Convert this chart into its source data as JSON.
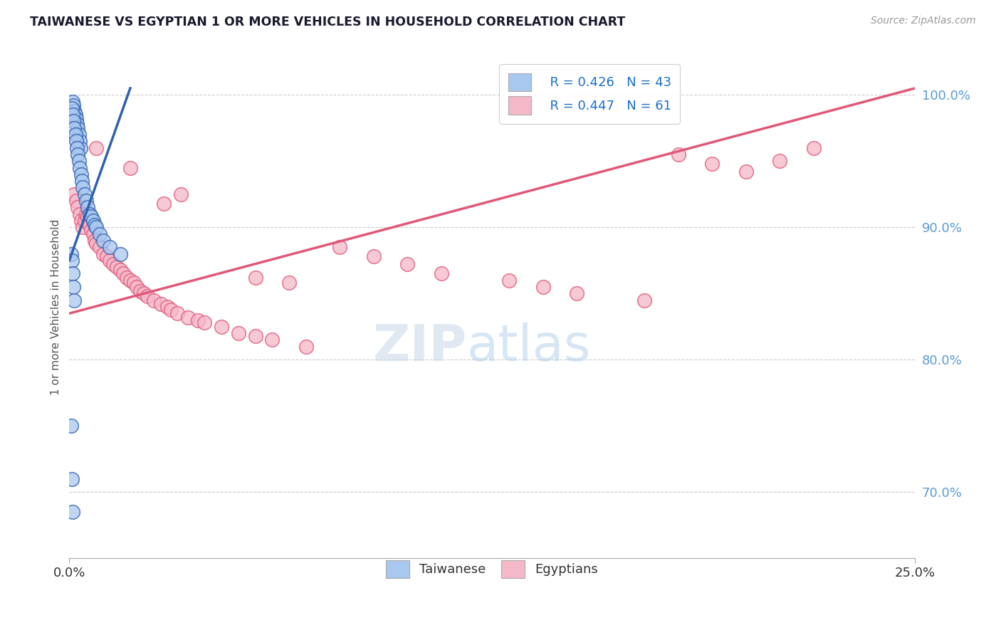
{
  "title": "TAIWANESE VS EGYPTIAN 1 OR MORE VEHICLES IN HOUSEHOLD CORRELATION CHART",
  "source": "Source: ZipAtlas.com",
  "ylabel_axis": "1 or more Vehicles in Household",
  "legend_label1": "Taiwanese",
  "legend_label2": "Egyptians",
  "legend_r1": "R = 0.426",
  "legend_n1": "N = 43",
  "legend_r2": "R = 0.447",
  "legend_n2": "N = 61",
  "watermark_zip": "ZIP",
  "watermark_atlas": "atlas",
  "color_taiwanese": "#a8c8f0",
  "color_egyptian": "#f5b8c8",
  "color_trend_taiwanese": "#3060b0",
  "color_trend_egyptian": "#e05878",
  "background": "#ffffff",
  "xlim": [
    0,
    25
  ],
  "ylim": [
    65,
    103
  ],
  "yticks": [
    70,
    80,
    90,
    100
  ],
  "ytick_labels": [
    "70.0%",
    "80.0%",
    "90.0%",
    "100.0%"
  ],
  "xtick_labels": [
    "0.0%",
    "25.0%"
  ],
  "taiwanese_x": [
    0.1,
    0.12,
    0.15,
    0.18,
    0.2,
    0.22,
    0.25,
    0.28,
    0.3,
    0.32,
    0.08,
    0.1,
    0.12,
    0.15,
    0.18,
    0.2,
    0.22,
    0.25,
    0.28,
    0.3,
    0.35,
    0.38,
    0.4,
    0.45,
    0.5,
    0.55,
    0.6,
    0.65,
    0.7,
    0.75,
    0.8,
    0.9,
    1.0,
    1.2,
    1.5,
    0.05,
    0.08,
    0.1,
    0.12,
    0.15,
    0.05,
    0.07,
    0.09
  ],
  "taiwanese_y": [
    99.5,
    99.2,
    98.8,
    98.5,
    98.2,
    97.8,
    97.5,
    97.0,
    96.5,
    96.0,
    99.0,
    98.5,
    98.0,
    97.5,
    97.0,
    96.5,
    96.0,
    95.5,
    95.0,
    94.5,
    94.0,
    93.5,
    93.0,
    92.5,
    92.0,
    91.5,
    91.0,
    90.8,
    90.5,
    90.2,
    90.0,
    89.5,
    89.0,
    88.5,
    88.0,
    88.0,
    87.5,
    86.5,
    85.5,
    84.5,
    75.0,
    71.0,
    68.5
  ],
  "egyptian_x": [
    0.15,
    0.2,
    0.25,
    0.3,
    0.35,
    0.4,
    0.45,
    0.5,
    0.55,
    0.6,
    0.65,
    0.7,
    0.75,
    0.8,
    0.9,
    1.0,
    1.1,
    1.2,
    1.3,
    1.4,
    1.5,
    1.6,
    1.7,
    1.8,
    1.9,
    2.0,
    2.1,
    2.2,
    2.3,
    2.5,
    2.7,
    2.9,
    3.0,
    3.2,
    3.5,
    3.8,
    4.0,
    4.5,
    5.0,
    5.5,
    6.0,
    7.0,
    8.0,
    9.0,
    10.0,
    11.0,
    13.0,
    14.0,
    15.0,
    17.0,
    18.0,
    19.0,
    20.0,
    21.0,
    22.0,
    5.5,
    6.5,
    3.3,
    2.8,
    1.8,
    0.8
  ],
  "egyptian_y": [
    92.5,
    92.0,
    91.5,
    91.0,
    90.5,
    90.0,
    90.5,
    91.0,
    90.8,
    90.2,
    89.8,
    89.5,
    89.0,
    88.8,
    88.5,
    88.0,
    87.8,
    87.5,
    87.2,
    87.0,
    86.8,
    86.5,
    86.2,
    86.0,
    85.8,
    85.5,
    85.2,
    85.0,
    84.8,
    84.5,
    84.2,
    84.0,
    83.8,
    83.5,
    83.2,
    83.0,
    82.8,
    82.5,
    82.0,
    81.8,
    81.5,
    81.0,
    88.5,
    87.8,
    87.2,
    86.5,
    86.0,
    85.5,
    85.0,
    84.5,
    95.5,
    94.8,
    94.2,
    95.0,
    96.0,
    86.2,
    85.8,
    92.5,
    91.8,
    94.5,
    96.0
  ],
  "trend_tw_x0": 0.0,
  "trend_tw_y0": 87.5,
  "trend_tw_x1": 1.8,
  "trend_tw_y1": 100.5,
  "trend_eg_x0": 0.0,
  "trend_eg_y0": 83.5,
  "trend_eg_x1": 25.0,
  "trend_eg_y1": 100.5
}
